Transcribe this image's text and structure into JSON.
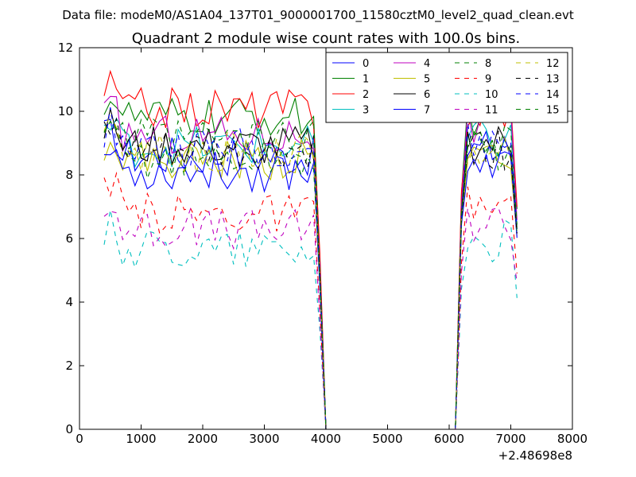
{
  "chart_data": {
    "type": "line",
    "suptitle": "Data file: modeM0/AS1A04_137T01_9000001700_11580cztM0_level2_quad_clean.evt",
    "title": "Quadrant 2 module wise count rates with 100.0s bins.",
    "xlabel": "",
    "ylabel": "",
    "x_offset_label": "+2.48698e8",
    "xlim": [
      0,
      8000
    ],
    "ylim": [
      0,
      12
    ],
    "xticks": [
      "0",
      "1000",
      "2000",
      "3000",
      "4000",
      "5000",
      "6000",
      "7000",
      "8000"
    ],
    "yticks": [
      "0",
      "2",
      "4",
      "6",
      "8",
      "10",
      "12"
    ],
    "grid": false,
    "legend_position": "top-right",
    "legend_columns": 4,
    "x_note": "x values in seconds relative to 2.48698e8",
    "x": [
      400,
      500,
      600,
      700,
      800,
      900,
      1000,
      1100,
      1200,
      1300,
      1400,
      1500,
      1600,
      1700,
      1800,
      1900,
      2000,
      2100,
      2200,
      2300,
      2400,
      2500,
      2600,
      2700,
      2800,
      2900,
      3000,
      3100,
      3200,
      3300,
      3400,
      3500,
      3600,
      3700,
      3800,
      3900,
      4000,
      4100,
      4200,
      4300,
      4400,
      4500,
      4600,
      4700,
      4800,
      4900,
      5000,
      5100,
      5200,
      5300,
      5400,
      5500,
      5600,
      5700,
      5800,
      5900,
      6000,
      6100,
      6200,
      6300,
      6400,
      6500,
      6600,
      6700,
      6800,
      6900,
      7000,
      7100
    ],
    "series": [
      {
        "name": "0",
        "color": "#0000ff",
        "dash": "solid",
        "base": 8.6,
        "post": 8.8
      },
      {
        "name": "1",
        "color": "#008000",
        "dash": "solid",
        "base": 9.8,
        "post": 9.9
      },
      {
        "name": "2",
        "color": "#ff0000",
        "dash": "solid",
        "base": 10.1,
        "post": 10.0
      },
      {
        "name": "3",
        "color": "#00bfbf",
        "dash": "solid",
        "base": 8.9,
        "post": 9.1
      },
      {
        "name": "4",
        "color": "#bf00bf",
        "dash": "solid",
        "base": 9.3,
        "post": 9.4
      },
      {
        "name": "5",
        "color": "#bfbf00",
        "dash": "solid",
        "base": 8.5,
        "post": 8.7
      },
      {
        "name": "6",
        "color": "#000000",
        "dash": "solid",
        "base": 8.9,
        "post": 9.0
      },
      {
        "name": "7",
        "color": "#0000ff",
        "dash": "solid",
        "base": 8.1,
        "post": 8.6
      },
      {
        "name": "8",
        "color": "#008000",
        "dash": "dashed",
        "base": 8.5,
        "post": 8.8
      },
      {
        "name": "9",
        "color": "#ff0000",
        "dash": "dashed",
        "base": 6.8,
        "post": 7.0
      },
      {
        "name": "10",
        "color": "#00bfbf",
        "dash": "dashed",
        "base": 5.7,
        "post": 5.9
      },
      {
        "name": "11",
        "color": "#bf00bf",
        "dash": "dashed",
        "base": 6.3,
        "post": 6.6
      },
      {
        "name": "12",
        "color": "#bfbf00",
        "dash": "dashed",
        "base": 8.7,
        "post": 8.9
      },
      {
        "name": "13",
        "color": "#000000",
        "dash": "dashed",
        "base": 8.7,
        "post": 8.8
      },
      {
        "name": "14",
        "color": "#0000ff",
        "dash": "dashed",
        "base": 8.9,
        "post": 9.0
      },
      {
        "name": "15",
        "color": "#008000",
        "dash": "dashed",
        "base": 9.1,
        "post": 9.2
      }
    ]
  }
}
